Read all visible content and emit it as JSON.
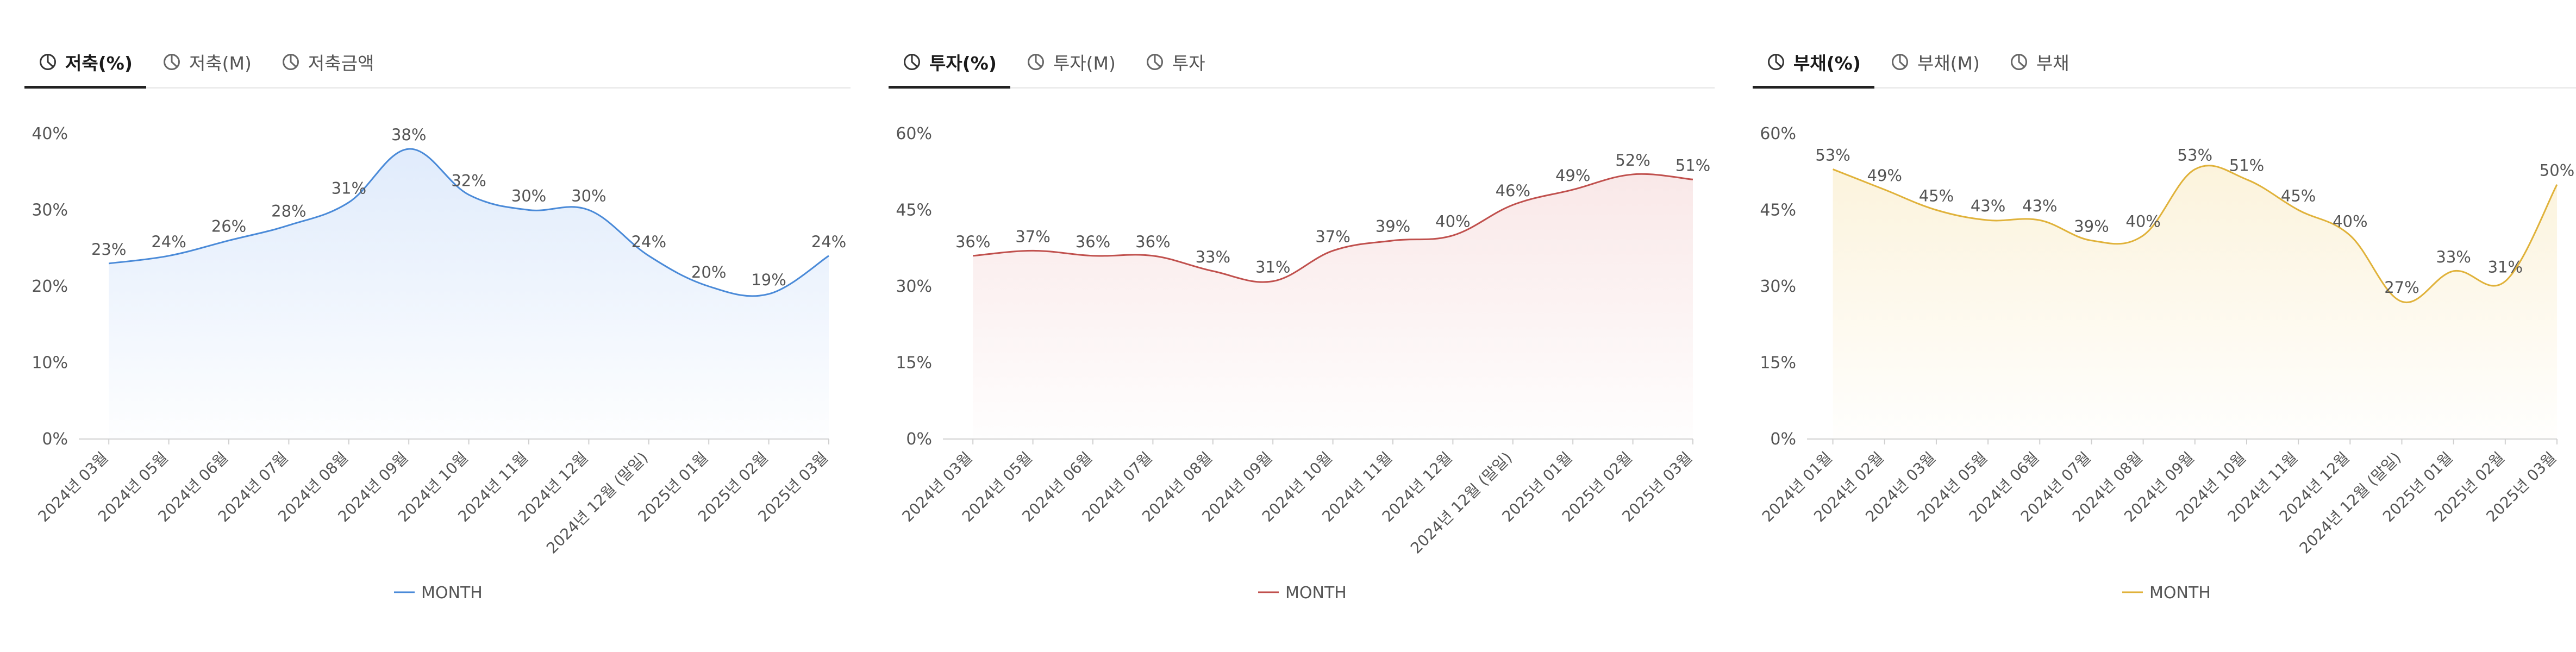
{
  "panels": [
    {
      "tabs": [
        {
          "label": "저축(%)",
          "active": true
        },
        {
          "label": "저축(M)",
          "active": false
        },
        {
          "label": "저축금액",
          "active": false
        }
      ]
    },
    {
      "tabs": [
        {
          "label": "투자(%)",
          "active": true
        },
        {
          "label": "투자(M)",
          "active": false
        },
        {
          "label": "투자",
          "active": false
        }
      ]
    },
    {
      "tabs": [
        {
          "label": "부채(%)",
          "active": true
        },
        {
          "label": "부채(M)",
          "active": false
        },
        {
          "label": "부채",
          "active": false
        }
      ]
    }
  ],
  "chart_data": [
    {
      "type": "area",
      "title": "저축(%)",
      "color": "#4a8ad8",
      "fill_color": "#dbe8fb",
      "categories": [
        "2024년 03월",
        "2024년 05월",
        "2024년 06월",
        "2024년 07월",
        "2024년 08월",
        "2024년 09월",
        "2024년 10월",
        "2024년 11월",
        "2024년 12월",
        "2024년 12월 (말일)",
        "2025년 01월",
        "2025년 02월",
        "2025년 03월"
      ],
      "series": [
        {
          "name": "MONTH",
          "values": [
            23,
            24,
            26,
            28,
            31,
            38,
            32,
            30,
            30,
            24,
            20,
            19,
            24
          ]
        }
      ],
      "y_ticks": [
        "0%",
        "10%",
        "20%",
        "30%",
        "40%"
      ],
      "ylim": [
        0,
        40
      ],
      "legend": "bottom-center"
    },
    {
      "type": "area",
      "title": "투자(%)",
      "color": "#c0504d",
      "fill_color": "#f8e4e4",
      "categories": [
        "2024년 03월",
        "2024년 05월",
        "2024년 06월",
        "2024년 07월",
        "2024년 08월",
        "2024년 09월",
        "2024년 10월",
        "2024년 11월",
        "2024년 12월",
        "2024년 12월 (말일)",
        "2025년 01월",
        "2025년 02월",
        "2025년 03월"
      ],
      "series": [
        {
          "name": "MONTH",
          "values": [
            36,
            37,
            36,
            36,
            33,
            31,
            37,
            39,
            40,
            46,
            49,
            52,
            51
          ]
        }
      ],
      "y_ticks": [
        "0%",
        "15%",
        "30%",
        "45%",
        "60%"
      ],
      "ylim": [
        0,
        60
      ],
      "legend": "bottom-center"
    },
    {
      "type": "area",
      "title": "부채(%)",
      "color": "#e0b23a",
      "fill_color": "#fbf1d6",
      "categories": [
        "2024년 01월",
        "2024년 02월",
        "2024년 03월",
        "2024년 05월",
        "2024년 06월",
        "2024년 07월",
        "2024년 08월",
        "2024년 09월",
        "2024년 10월",
        "2024년 11월",
        "2024년 12월",
        "2024년 12월 (말일)",
        "2025년 01월",
        "2025년 02월",
        "2025년 03월"
      ],
      "series": [
        {
          "name": "MONTH",
          "values": [
            53,
            49,
            45,
            43,
            43,
            39,
            40,
            53,
            51,
            45,
            40,
            27,
            33,
            31,
            50
          ]
        }
      ],
      "y_ticks": [
        "0%",
        "15%",
        "30%",
        "45%",
        "60%"
      ],
      "ylim": [
        0,
        60
      ],
      "legend": "bottom-center"
    }
  ]
}
